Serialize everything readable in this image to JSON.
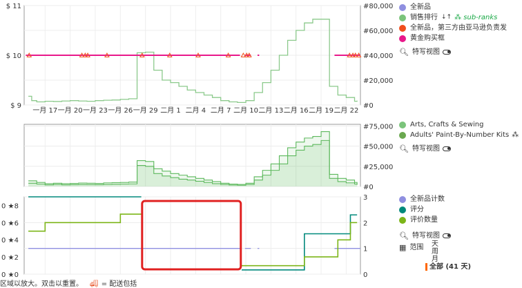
{
  "chart_data": [
    {
      "type": "line",
      "y_left_ticks": [
        "$ 11",
        "$ 10",
        "$ 9"
      ],
      "y_left_ticks_values": [
        11,
        10,
        9
      ],
      "ylim_left": [
        9,
        11
      ],
      "y_right_ticks": [
        "#80,000",
        "#60,000",
        "#40,000",
        "#20,000",
        "#0"
      ],
      "y_right_ticks_values": [
        80000,
        60000,
        40000,
        20000,
        0
      ],
      "ylim_right": [
        0,
        80000
      ],
      "x_ticks": [
        "一月 17",
        "一月 20",
        "一月 23",
        "一月 26",
        "一月 29",
        "二月 1",
        "二月 4",
        "二月 7",
        "二月 10",
        "二月 13",
        "二月 16",
        "二月 19",
        "二月 22"
      ],
      "x_ticks_values": [
        17,
        20,
        23,
        26,
        29,
        32,
        35,
        38,
        41,
        44,
        47,
        50,
        53
      ],
      "xlim": [
        14.5,
        54.7
      ],
      "grid": true,
      "series": [
        {
          "name": "销售排行",
          "color": "#8bc98b",
          "axis": "right",
          "step": true,
          "x": [
            15,
            15.4,
            16,
            17,
            18,
            19,
            20,
            21,
            22,
            23,
            24,
            25,
            26,
            27,
            28,
            29,
            30,
            31,
            32,
            33,
            34,
            35,
            36,
            37,
            38,
            39,
            40,
            41,
            42,
            43,
            44,
            45,
            46,
            47,
            48,
            49,
            50,
            51,
            52,
            53,
            54,
            54.3
          ],
          "y": [
            7000,
            3500,
            2500,
            3000,
            2800,
            3200,
            3500,
            3200,
            3000,
            3500,
            3800,
            4000,
            4500,
            5000,
            42000,
            42500,
            28000,
            20000,
            18000,
            15000,
            12000,
            10000,
            8000,
            6000,
            3500,
            2500,
            2000,
            3500,
            10000,
            18000,
            28000,
            40000,
            52000,
            60000,
            66000,
            69000,
            69000,
            15000,
            8000,
            6000,
            3000,
            3500
          ]
        },
        {
          "name": "全新品，第三方由亚马逊负责发货",
          "color": "#f04e1c",
          "points": [
            [
              15.1,
              10
            ],
            [
              21.4,
              10
            ],
            [
              21.8,
              10
            ],
            [
              22.1,
              10
            ],
            [
              24.4,
              10
            ],
            [
              28.6,
              10
            ],
            [
              31.9,
              10
            ],
            [
              35.3,
              10
            ],
            [
              38.9,
              10
            ],
            [
              40.7,
              10
            ],
            [
              41.1,
              10
            ],
            [
              41.4,
              10
            ],
            [
              53.4,
              10
            ],
            [
              53.8,
              10
            ],
            [
              54.1,
              10
            ],
            [
              54.5,
              10
            ]
          ]
        },
        {
          "name": "黄金购买框",
          "color": "#e8178a",
          "segments": [
            [
              [
                14.7,
                10
              ],
              [
                40.3,
                10
              ]
            ],
            [
              [
                40.9,
                10
              ],
              [
                41.6,
                10
              ]
            ],
            [
              [
                42.4,
                10
              ],
              [
                42.6,
                10
              ]
            ],
            [
              [
                51.6,
                10
              ],
              [
                54.7,
                10
              ]
            ]
          ]
        }
      ]
    },
    {
      "type": "area",
      "y_right_ticks": [
        "#75,000",
        "#50,000",
        "#25,000",
        "#0"
      ],
      "y_right_ticks_values": [
        75000,
        50000,
        25000,
        0
      ],
      "ylim_right": [
        0,
        77000
      ],
      "xlim": [
        14.5,
        54.7
      ],
      "grid": true,
      "series": [
        {
          "name": "Arts, Crafts & Sewing",
          "color": "#5cb85c",
          "step": true,
          "x": [
            15,
            16,
            17,
            18,
            19,
            20,
            21,
            22,
            23,
            24,
            25,
            26,
            27,
            28,
            29,
            30,
            31,
            32,
            33,
            34,
            35,
            36,
            37,
            38,
            39,
            40,
            41,
            42,
            43,
            44,
            45,
            46,
            47,
            48,
            49,
            50,
            51,
            52,
            53,
            54,
            54.3
          ],
          "y": [
            7000,
            5000,
            3500,
            4000,
            3500,
            3800,
            4200,
            4000,
            3800,
            4500,
            4800,
            5000,
            5500,
            32000,
            31000,
            22000,
            19000,
            16000,
            14000,
            12000,
            10000,
            8000,
            6000,
            4000,
            3000,
            2500,
            4000,
            12000,
            20000,
            28000,
            38000,
            48000,
            55000,
            60000,
            62000,
            68000,
            15000,
            10000,
            8000,
            5000,
            3000
          ]
        },
        {
          "name": "Adults' Paint-By-Number Kits",
          "color": "#5cb85c",
          "step": true,
          "x": [
            15,
            16,
            17,
            18,
            19,
            20,
            21,
            22,
            23,
            24,
            25,
            26,
            27,
            28,
            29,
            30,
            31,
            32,
            33,
            34,
            35,
            36,
            37,
            38,
            39,
            40,
            41,
            42,
            43,
            44,
            45,
            46,
            47,
            48,
            49,
            50,
            51,
            52,
            53,
            54,
            54.3
          ],
          "y": [
            4000,
            3000,
            2000,
            2500,
            2000,
            2200,
            2400,
            2300,
            2200,
            2600,
            2800,
            3000,
            3200,
            26000,
            25000,
            16000,
            13000,
            11000,
            9000,
            8000,
            6500,
            5000,
            3500,
            2500,
            1800,
            1500,
            2500,
            8000,
            14000,
            20000,
            28000,
            38000,
            45000,
            50000,
            52000,
            57000,
            10000,
            6000,
            4500,
            3000,
            2000
          ]
        }
      ],
      "legend": [
        "Arts, Crafts & Sewing",
        "Adults' Paint-By-Number Kits"
      ]
    },
    {
      "type": "line",
      "y_left_ticks": [
        "8",
        "6",
        "4",
        "2",
        "0"
      ],
      "y_left_ticks_values": [
        8,
        6,
        4,
        2,
        0
      ],
      "ylim_left": [
        0,
        9
      ],
      "y_right_ticks": [
        "3",
        "2",
        "1",
        "0"
      ],
      "y_right_ticks_values": [
        3,
        2,
        1,
        0
      ],
      "ylim_right": [
        0,
        3
      ],
      "xlim": [
        14.5,
        54.7
      ],
      "grid": true,
      "series": [
        {
          "name": "全新品计数",
          "color": "#8f8fe0",
          "axis": "right",
          "segments": [
            [
              [
                15,
                1
              ],
              [
                40.3,
                1
              ]
            ],
            [
              [
                40.9,
                1
              ],
              [
                41.6,
                1
              ]
            ],
            [
              [
                42.4,
                1
              ],
              [
                42.6,
                1
              ]
            ],
            [
              [
                51.6,
                1
              ],
              [
                54.7,
                1
              ]
            ]
          ]
        },
        {
          "name": "评分",
          "color": "#00897b",
          "axis": "left",
          "step": true,
          "x": [
            15,
            28.5
          ],
          "y": [
            9,
            9
          ],
          "x2": [
            40.5,
            48,
            53.5,
            54.3
          ],
          "y2": [
            0.5,
            4.7,
            6.9,
            6.9
          ]
        },
        {
          "name": "评价数量",
          "color": "#7cb518",
          "axis": "right",
          "step": true,
          "x": [
            15,
            17,
            23,
            26,
            28.5
          ],
          "y": [
            1.67,
            2,
            2,
            2.33,
            2.33
          ],
          "x2": [
            40.5,
            48,
            52,
            53.5,
            54.3
          ],
          "y2": [
            0.33,
            0.67,
            1.33,
            2,
            2
          ]
        }
      ]
    }
  ],
  "legend": {
    "panel1": [
      {
        "label": "全新品",
        "color": "#8f8fe0"
      },
      {
        "label": "销售排行",
        "color": "#7bc47b",
        "extra_icon": "sort-icon",
        "sub": "sub-ranks"
      },
      {
        "label": "全新品，第三方由亚马逊负责发",
        "color": "#f04e1c"
      },
      {
        "label": "黄金购买框",
        "color": "#e8178a"
      }
    ],
    "panel2": [
      {
        "label": "Arts, Crafts & Sewing",
        "color": "#7bc47b"
      },
      {
        "label": "Adults' Paint-By-Number Kits",
        "color": "#6aa84f"
      }
    ],
    "panel3": [
      {
        "label": "全新品计数",
        "color": "#8f8fe0"
      },
      {
        "label": "评分",
        "color": "#00897b"
      },
      {
        "label": "评价数量",
        "color": "#7cb518"
      }
    ],
    "closeup_label": "特写视图",
    "range_label": "范围",
    "range_options": [
      "天",
      "周",
      "月"
    ],
    "range_selected": "全部 (41 天)"
  },
  "star_ticks": [
    "0 ★",
    "0 ★",
    "0 ★",
    "0 ★",
    "0 ★"
  ],
  "footer": {
    "left_text": "区域以放大。双击以重置。",
    "right_text": "= 配送包括"
  }
}
